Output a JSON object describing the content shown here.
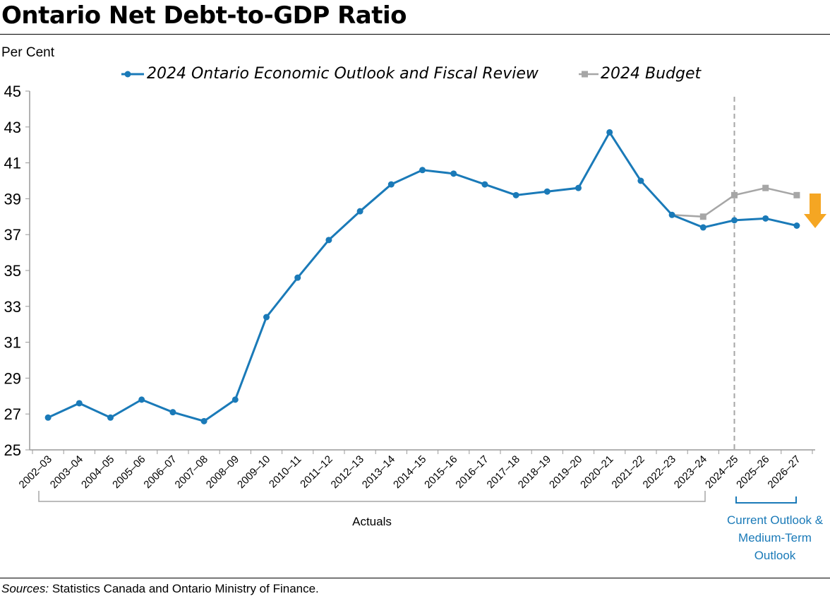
{
  "title": "Ontario Net Debt-to-GDP Ratio",
  "source_label": "Sources:",
  "source_text": "Statistics Canada and Ontario Ministry of Finance.",
  "chart_data": {
    "type": "line",
    "title": "Ontario Net Debt-to-GDP Ratio",
    "ylabel": "Per Cent",
    "xlabel": "",
    "ylim": [
      25,
      45
    ],
    "yticks": [
      25,
      27,
      29,
      31,
      33,
      35,
      37,
      39,
      41,
      43,
      45
    ],
    "grid": false,
    "legend": "top",
    "categories": [
      "2002–03",
      "2003–04",
      "2004–05",
      "2005–06",
      "2006–07",
      "2007–08",
      "2008–09",
      "2009–10",
      "2010–11",
      "2011–12",
      "2012–13",
      "2013–14",
      "2014–15",
      "2015–16",
      "2016–17",
      "2017–18",
      "2018–19",
      "2019–20",
      "2020–21",
      "2021–22",
      "2022–23",
      "2023–24",
      "2024–25",
      "2025–26",
      "2026–27"
    ],
    "series": [
      {
        "name": "2024 Ontario Economic Outlook and Fiscal Review",
        "color": "#1a7ab8",
        "marker": "circle",
        "values": [
          26.8,
          27.6,
          26.8,
          27.8,
          27.1,
          26.6,
          27.8,
          32.4,
          34.6,
          36.7,
          38.3,
          39.8,
          40.6,
          40.4,
          39.8,
          39.2,
          39.4,
          39.6,
          42.7,
          40.0,
          38.1,
          37.4,
          37.8,
          37.9,
          37.5
        ]
      },
      {
        "name": "2024 Budget",
        "color": "#a6a6a6",
        "marker": "square",
        "values": [
          null,
          null,
          null,
          null,
          null,
          null,
          null,
          null,
          null,
          null,
          null,
          null,
          null,
          null,
          null,
          null,
          null,
          null,
          null,
          null,
          38.1,
          38.0,
          39.2,
          39.6,
          39.2
        ]
      }
    ],
    "annotations": {
      "actuals": "Actuals",
      "outlook_lines": [
        "Current Outlook &",
        "Medium-Term",
        "Outlook"
      ],
      "divider_at": "2024–25",
      "arrow_color": "#f5a623",
      "outlook_color": "#1a7ab8"
    }
  }
}
